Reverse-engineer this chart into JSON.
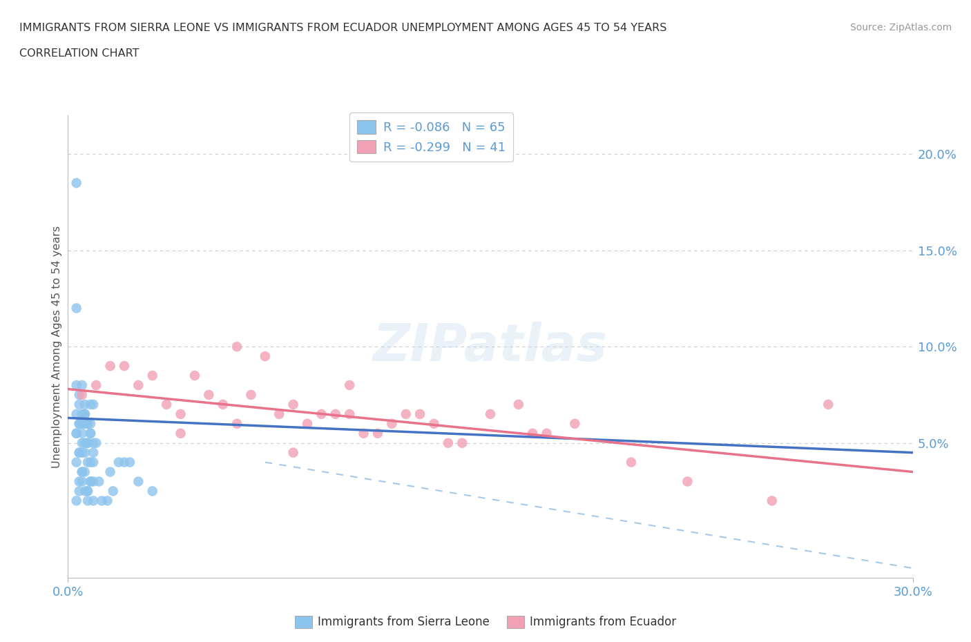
{
  "title_line1": "IMMIGRANTS FROM SIERRA LEONE VS IMMIGRANTS FROM ECUADOR UNEMPLOYMENT AMONG AGES 45 TO 54 YEARS",
  "title_line2": "CORRELATION CHART",
  "source_text": "Source: ZipAtlas.com",
  "ylabel": "Unemployment Among Ages 45 to 54 years",
  "xlim": [
    0.0,
    0.3
  ],
  "ylim": [
    -0.02,
    0.22
  ],
  "yticks": [
    0.05,
    0.1,
    0.15,
    0.2
  ],
  "ytick_labels": [
    "5.0%",
    "10.0%",
    "15.0%",
    "20.0%"
  ],
  "xtick_labels": [
    "0.0%",
    "30.0%"
  ],
  "legend_entry1": "R = -0.086   N = 65",
  "legend_entry2": "R = -0.299   N = 41",
  "legend_label1": "Immigrants from Sierra Leone",
  "legend_label2": "Immigrants from Ecuador",
  "color_sierra": "#8DC4ED",
  "color_ecuador": "#F2A0B5",
  "color_axis_blue": "#5B9BD5",
  "color_reg_blue": "#4472C4",
  "color_reg_pink": "#E8728A",
  "color_dashed": "#A8C8E8",
  "sierra_x": [
    0.005,
    0.008,
    0.003,
    0.006,
    0.009,
    0.004,
    0.007,
    0.005,
    0.003,
    0.01,
    0.006,
    0.008,
    0.004,
    0.007,
    0.005,
    0.009,
    0.003,
    0.006,
    0.008,
    0.004,
    0.007,
    0.005,
    0.006,
    0.003,
    0.009,
    0.004,
    0.007,
    0.005,
    0.008,
    0.003,
    0.006,
    0.004,
    0.007,
    0.005,
    0.009,
    0.003,
    0.006,
    0.004,
    0.008,
    0.005,
    0.007,
    0.003,
    0.006,
    0.009,
    0.004,
    0.007,
    0.005,
    0.008,
    0.003,
    0.006,
    0.004,
    0.009,
    0.007,
    0.005,
    0.02,
    0.025,
    0.015,
    0.018,
    0.03,
    0.022,
    0.008,
    0.012,
    0.016,
    0.014,
    0.011
  ],
  "sierra_y": [
    0.06,
    0.055,
    0.065,
    0.05,
    0.07,
    0.045,
    0.06,
    0.08,
    0.055,
    0.05,
    0.065,
    0.04,
    0.075,
    0.06,
    0.05,
    0.045,
    0.185,
    0.06,
    0.055,
    0.07,
    0.05,
    0.045,
    0.065,
    0.12,
    0.05,
    0.06,
    0.04,
    0.055,
    0.07,
    0.08,
    0.045,
    0.06,
    0.05,
    0.065,
    0.04,
    0.055,
    0.07,
    0.045,
    0.06,
    0.03,
    0.025,
    0.02,
    0.035,
    0.03,
    0.025,
    0.02,
    0.035,
    0.03,
    0.04,
    0.025,
    0.03,
    0.02,
    0.025,
    0.035,
    0.04,
    0.03,
    0.035,
    0.04,
    0.025,
    0.04,
    0.03,
    0.02,
    0.025,
    0.02,
    0.03
  ],
  "ecuador_x": [
    0.005,
    0.01,
    0.02,
    0.03,
    0.04,
    0.05,
    0.06,
    0.07,
    0.08,
    0.09,
    0.1,
    0.11,
    0.12,
    0.13,
    0.14,
    0.15,
    0.16,
    0.17,
    0.18,
    0.015,
    0.025,
    0.035,
    0.045,
    0.055,
    0.065,
    0.075,
    0.085,
    0.095,
    0.105,
    0.115,
    0.125,
    0.135,
    0.165,
    0.2,
    0.22,
    0.25,
    0.27,
    0.04,
    0.06,
    0.08,
    0.1
  ],
  "ecuador_y": [
    0.075,
    0.08,
    0.09,
    0.085,
    0.065,
    0.075,
    0.1,
    0.095,
    0.07,
    0.065,
    0.08,
    0.055,
    0.065,
    0.06,
    0.05,
    0.065,
    0.07,
    0.055,
    0.06,
    0.09,
    0.08,
    0.07,
    0.085,
    0.07,
    0.075,
    0.065,
    0.06,
    0.065,
    0.055,
    0.06,
    0.065,
    0.05,
    0.055,
    0.04,
    0.03,
    0.02,
    0.07,
    0.055,
    0.06,
    0.045,
    0.065
  ]
}
